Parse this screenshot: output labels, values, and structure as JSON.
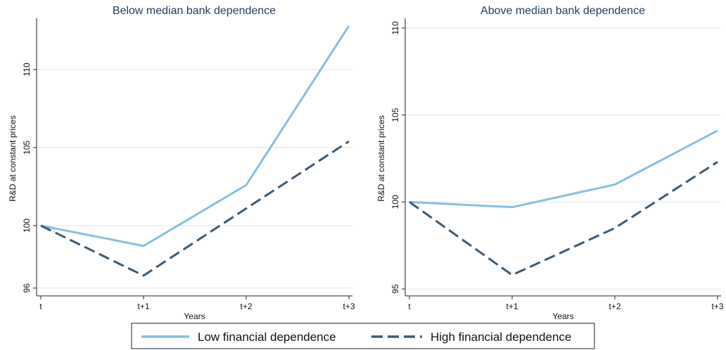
{
  "colors": {
    "low": "#85bfe4",
    "high": "#3d5a73",
    "grid": "#e6e6e6",
    "axis": "#222222",
    "title": "#1e3c5e"
  },
  "legend": {
    "items": [
      {
        "label": "Low financial dependence",
        "color": "#85bfe4",
        "style": "solid"
      },
      {
        "label": "High financial dependence",
        "color": "#3d5a73",
        "style": "dashed"
      }
    ],
    "placement": "bottom-center"
  },
  "chart_data": [
    {
      "type": "line",
      "title": "Below median bank dependence",
      "xlabel": "Years",
      "ylabel": "R&D at constant prices",
      "categories": [
        "t",
        "t+1",
        "t+2",
        "t+3"
      ],
      "yticks": [
        96,
        100,
        105,
        110
      ],
      "ylim": [
        95.5,
        113.1
      ],
      "grid": true,
      "series": [
        {
          "name": "Low financial dependence",
          "values": [
            100,
            98.7,
            102.6,
            112.8
          ]
        },
        {
          "name": "High financial dependence",
          "values": [
            100,
            96.8,
            101.1,
            105.4
          ]
        }
      ]
    },
    {
      "type": "line",
      "title": "Above median bank dependence",
      "xlabel": "Years",
      "ylabel": "R&D at constant prices",
      "categories": [
        "t",
        "t+1",
        "t+2",
        "t+3"
      ],
      "yticks": [
        95,
        100,
        105,
        110
      ],
      "ylim": [
        94.6,
        110.4
      ],
      "grid": true,
      "series": [
        {
          "name": "Low financial dependence",
          "values": [
            100,
            99.7,
            101,
            104.1
          ]
        },
        {
          "name": "High financial dependence",
          "values": [
            100,
            95.8,
            98.5,
            102.3
          ]
        }
      ]
    }
  ]
}
